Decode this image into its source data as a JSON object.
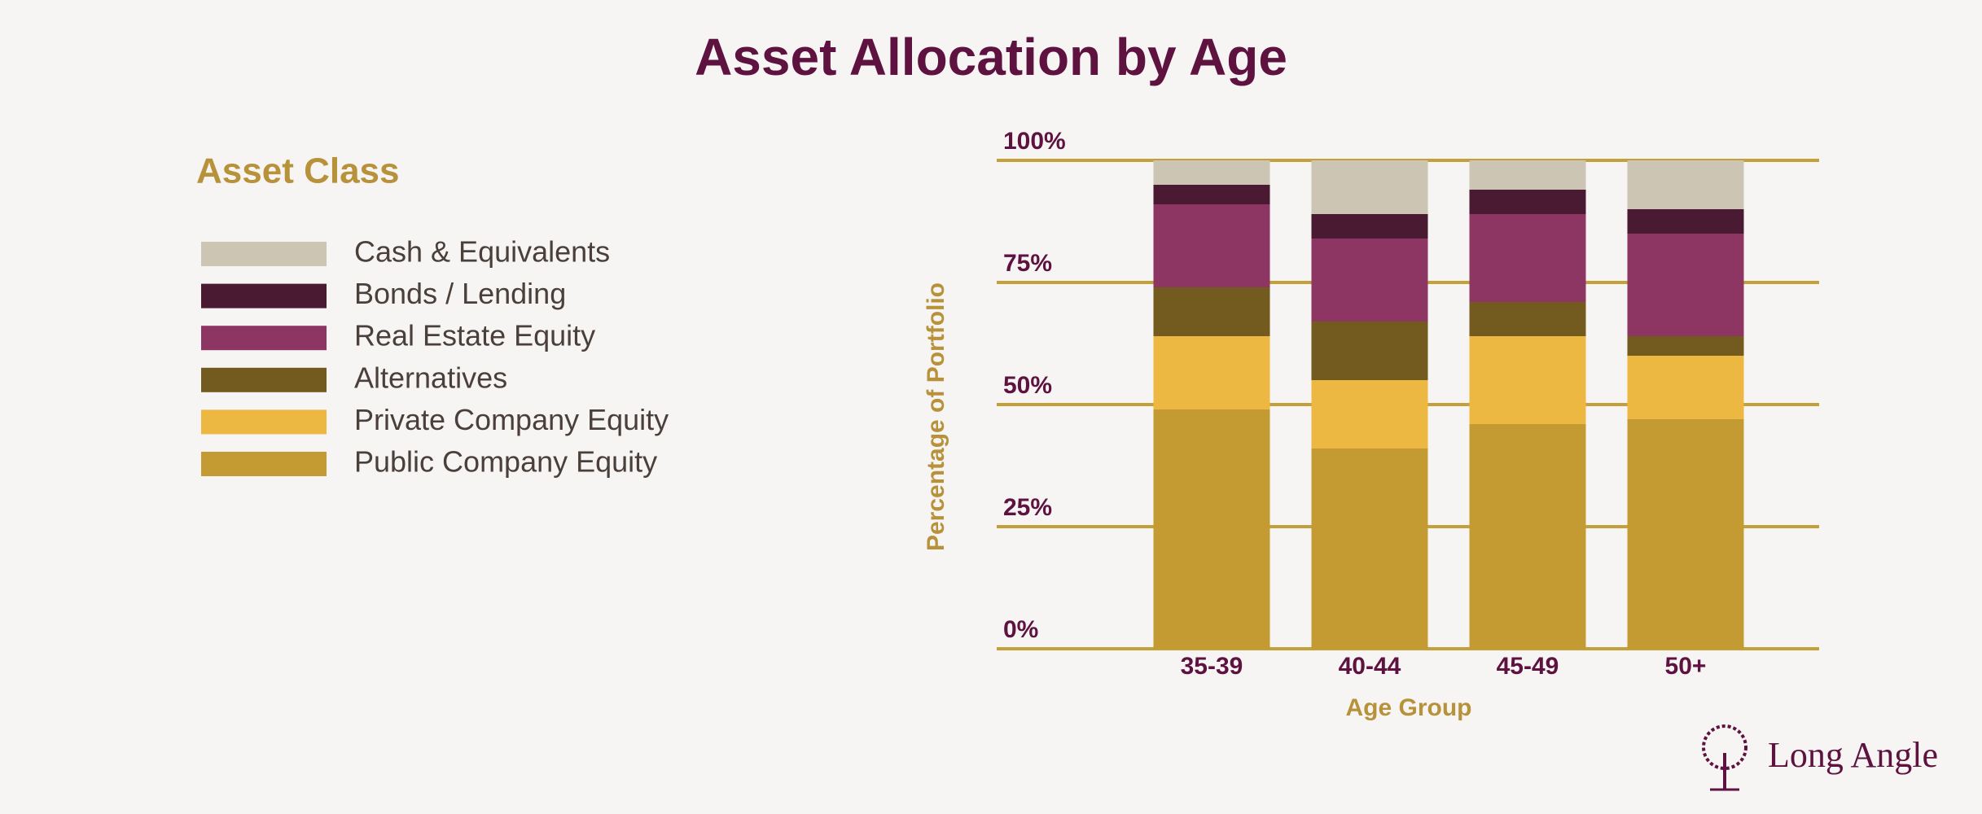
{
  "chart_data": {
    "type": "stacked_bar",
    "title": "Asset Allocation by Age",
    "legend_title": "Asset Class",
    "x_label": "Age Group",
    "y_label": "Percentage of Portfolio",
    "categories": [
      "35-39",
      "40-44",
      "45-49",
      "50+"
    ],
    "series": [
      {
        "name": "Public Company Equity",
        "color": "#c49a33",
        "values": [
          49,
          41,
          46,
          47
        ]
      },
      {
        "name": "Private Company Equity",
        "color": "#ecb842",
        "values": [
          15,
          14,
          18,
          13
        ]
      },
      {
        "name": "Alternatives",
        "color": "#735a1e",
        "values": [
          10,
          12,
          7,
          4
        ]
      },
      {
        "name": "Real Estate Equity",
        "color": "#8e3663",
        "values": [
          17,
          17,
          18,
          21
        ]
      },
      {
        "name": "Bonds / Lending",
        "color": "#4a1a33",
        "values": [
          4,
          5,
          5,
          5
        ]
      },
      {
        "name": "Cash & Equivalents",
        "color": "#cdc5b4",
        "values": [
          5,
          11,
          6,
          10
        ]
      }
    ],
    "ylim": [
      0,
      100
    ],
    "yticks": [
      {
        "value": 0,
        "label": "0%"
      },
      {
        "value": 25,
        "label": "25%"
      },
      {
        "value": 50,
        "label": "50%"
      },
      {
        "value": 75,
        "label": "75%"
      },
      {
        "value": 100,
        "label": "100%"
      }
    ],
    "grid": true,
    "branding": "Long Angle"
  }
}
